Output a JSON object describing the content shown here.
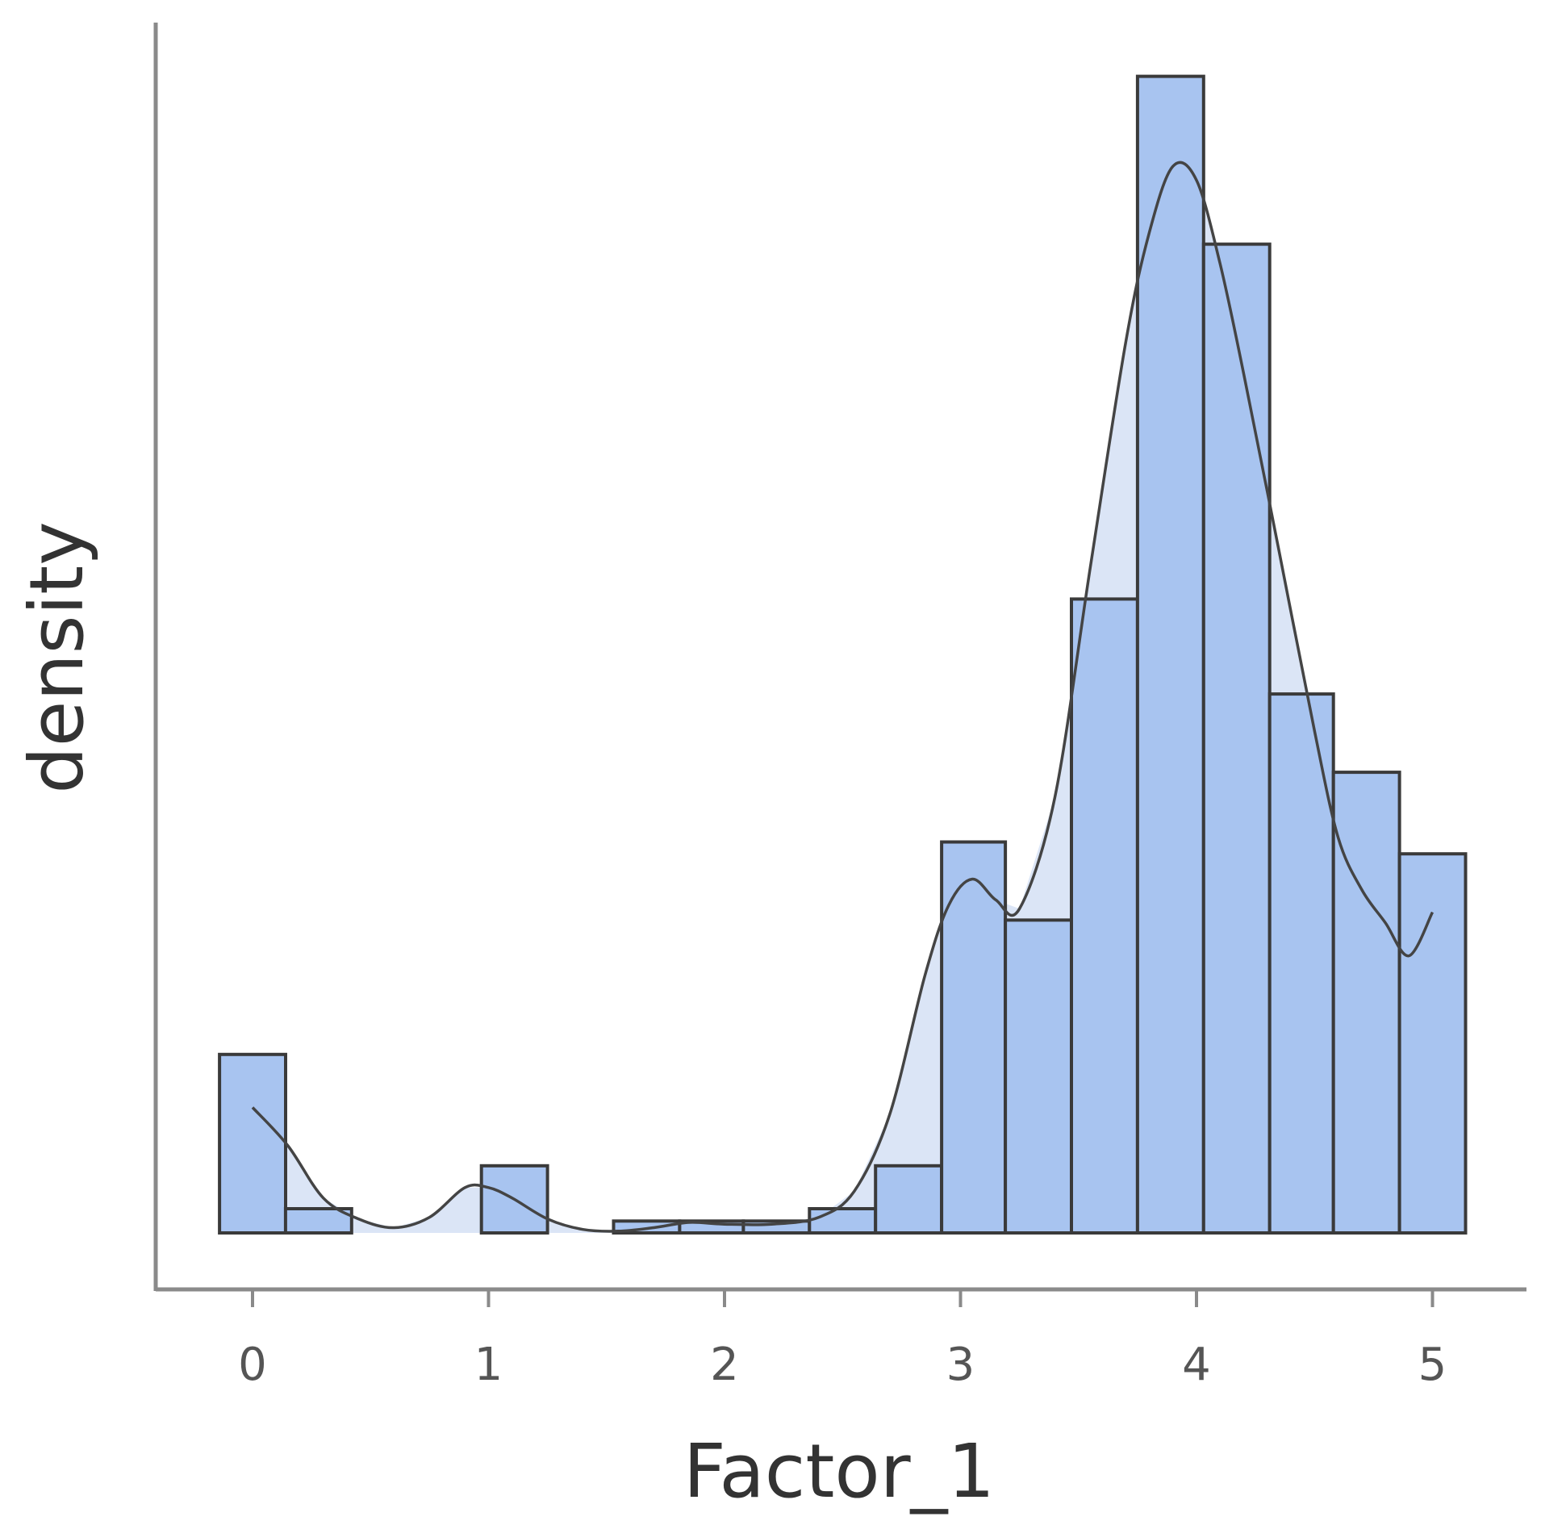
{
  "chart_data": {
    "type": "bar",
    "xlabel": "Factor_1",
    "ylabel": "density",
    "xticks": [
      0,
      1,
      2,
      3,
      4,
      5
    ],
    "xlim": [
      -0.4,
      5.4
    ],
    "ylim": [
      0,
      0.72
    ],
    "y_ticks_shown": false,
    "grid": false,
    "legend": "none",
    "bin_width": 0.2777,
    "bins": [
      {
        "x0": -0.14,
        "x1": 0.14,
        "density": 0.1024
      },
      {
        "x0": 0.14,
        "x1": 0.42,
        "density": 0.0139
      },
      {
        "x0": 0.42,
        "x1": 0.69,
        "density": 0.0
      },
      {
        "x0": 0.69,
        "x1": 0.97,
        "density": 0.0
      },
      {
        "x0": 0.97,
        "x1": 1.25,
        "density": 0.0385
      },
      {
        "x0": 1.25,
        "x1": 1.53,
        "density": 0.0
      },
      {
        "x0": 1.53,
        "x1": 1.81,
        "density": 0.0068
      },
      {
        "x0": 1.81,
        "x1": 2.08,
        "density": 0.0068
      },
      {
        "x0": 2.08,
        "x1": 2.36,
        "density": 0.0068
      },
      {
        "x0": 2.36,
        "x1": 2.64,
        "density": 0.0139
      },
      {
        "x0": 2.64,
        "x1": 2.92,
        "density": 0.0385
      },
      {
        "x0": 2.92,
        "x1": 3.19,
        "density": 0.2243
      },
      {
        "x0": 3.19,
        "x1": 3.47,
        "density": 0.1795
      },
      {
        "x0": 3.47,
        "x1": 3.75,
        "density": 0.3637
      },
      {
        "x0": 3.75,
        "x1": 4.03,
        "density": 0.6636
      },
      {
        "x0": 4.03,
        "x1": 4.31,
        "density": 0.5673
      },
      {
        "x0": 4.31,
        "x1": 4.58,
        "density": 0.3092
      },
      {
        "x0": 4.58,
        "x1": 4.86,
        "density": 0.2643
      },
      {
        "x0": 4.86,
        "x1": 5.14,
        "density": 0.2175
      }
    ],
    "kde": {
      "x": [
        0.0,
        0.15,
        0.3,
        0.45,
        0.6,
        0.75,
        0.9,
        1.0,
        1.1,
        1.25,
        1.4,
        1.55,
        1.7,
        1.85,
        2.0,
        2.2,
        2.4,
        2.55,
        2.7,
        2.85,
        2.95,
        3.05,
        3.15,
        3.25,
        3.4,
        3.55,
        3.7,
        3.8,
        3.9,
        4.0,
        4.1,
        4.2,
        4.35,
        4.5,
        4.6,
        4.7,
        4.8,
        4.9,
        5.0
      ],
      "y": [
        0.072,
        0.05,
        0.02,
        0.008,
        0.003,
        0.009,
        0.026,
        0.026,
        0.02,
        0.008,
        0.002,
        0.001,
        0.003,
        0.006,
        0.005,
        0.005,
        0.009,
        0.024,
        0.068,
        0.148,
        0.188,
        0.203,
        0.191,
        0.186,
        0.25,
        0.382,
        0.511,
        0.574,
        0.612,
        0.604,
        0.556,
        0.493,
        0.391,
        0.288,
        0.227,
        0.197,
        0.178,
        0.159,
        0.184
      ]
    },
    "colors": {
      "bar_fill": "#a8c4f0",
      "bar_stroke": "#3a3a3a",
      "kde_fill": "#dbe5f6",
      "kde_line": "#444444",
      "axis": "#8a8a8a"
    }
  }
}
